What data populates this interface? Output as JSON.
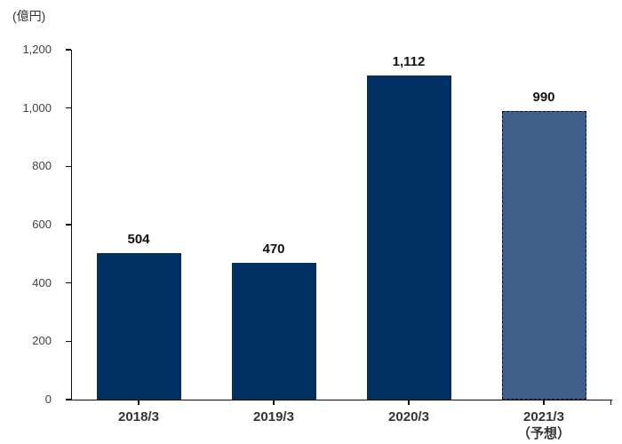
{
  "chart_data": {
    "type": "bar",
    "title": "",
    "unit_label": "(億円)",
    "categories": [
      "2018/3",
      "2019/3",
      "2020/3",
      "2021/3\n（予想）"
    ],
    "values": [
      504,
      470,
      1112,
      990
    ],
    "value_labels": [
      "504",
      "470",
      "1,112",
      "990"
    ],
    "is_forecast": [
      false,
      false,
      false,
      true
    ],
    "xlabel": "",
    "ylabel": "",
    "ylim": [
      0,
      1200
    ],
    "ytick_step": 200,
    "ytick_labels": [
      "0",
      "200",
      "400",
      "600",
      "800",
      "1,000",
      "1,200"
    ],
    "grid": false,
    "legend": "none",
    "colors": {
      "bar_fill": "#003064",
      "forecast_bar_fill": "#3D5F8A",
      "forecast_bar_border": "#111111",
      "axis": "#0f0f0f",
      "tick_label": "#404040",
      "category_label": "#333333",
      "value_label": "#111111",
      "background": "#FFFFFF"
    }
  }
}
